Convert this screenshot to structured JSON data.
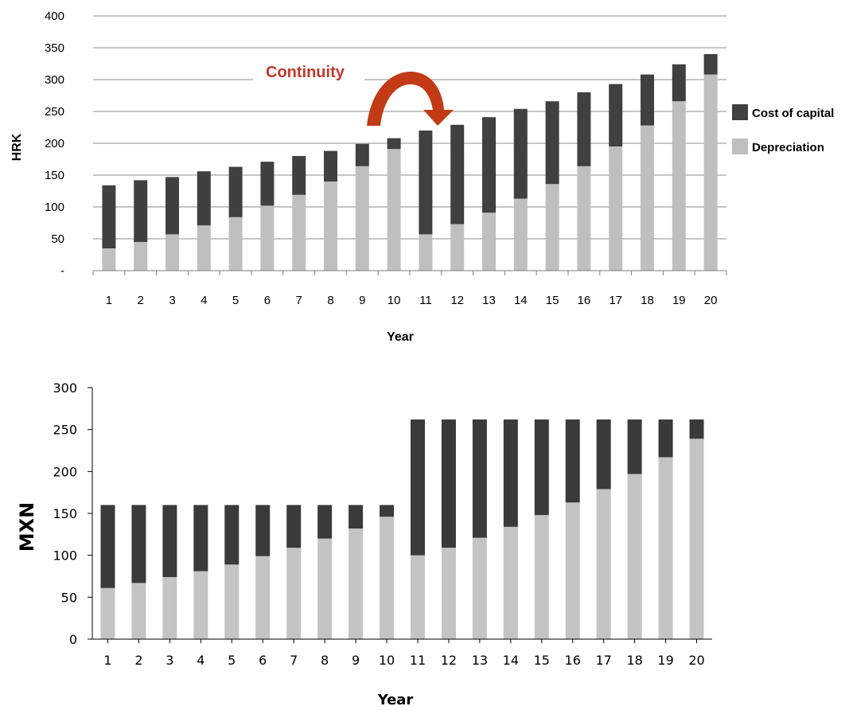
{
  "chart_data": [
    {
      "type": "bar",
      "stacked": true,
      "categories": [
        "1",
        "2",
        "3",
        "4",
        "5",
        "6",
        "7",
        "8",
        "9",
        "10",
        "11",
        "12",
        "13",
        "14",
        "15",
        "16",
        "17",
        "18",
        "19",
        "20"
      ],
      "series": [
        {
          "name": "Depreciation",
          "color": "#bfbfbf",
          "values": [
            35,
            45,
            57,
            71,
            84,
            102,
            119,
            140,
            164,
            191,
            57,
            73,
            91,
            113,
            136,
            164,
            195,
            228,
            266,
            308
          ]
        },
        {
          "name": "Cost of capital",
          "color": "#404040",
          "values": [
            99,
            97,
            90,
            85,
            79,
            69,
            61,
            48,
            35,
            17,
            163,
            156,
            150,
            141,
            130,
            116,
            98,
            80,
            58,
            32
          ]
        }
      ],
      "totals": [
        134,
        142,
        147,
        156,
        163,
        171,
        180,
        188,
        199,
        208,
        220,
        229,
        241,
        254,
        266,
        280,
        293,
        308,
        324,
        340
      ],
      "ylabel": "HRK",
      "xlabel": "Year",
      "ylim": [
        0,
        400
      ],
      "yticks": [
        "-",
        "50",
        "100",
        "150",
        "200",
        "250",
        "300",
        "350",
        "400"
      ],
      "grid": true,
      "legend_position": "right",
      "annotation": {
        "text": "Continuity",
        "color": "#c0392b"
      }
    },
    {
      "type": "bar",
      "stacked": true,
      "categories": [
        "1",
        "2",
        "3",
        "4",
        "5",
        "6",
        "7",
        "8",
        "9",
        "10",
        "11",
        "12",
        "13",
        "14",
        "15",
        "16",
        "17",
        "18",
        "19",
        "20"
      ],
      "series": [
        {
          "name": "Depreciation",
          "color": "#c4c4c4",
          "values": [
            61,
            67,
            74,
            81,
            89,
            99,
            109,
            120,
            132,
            146,
            100,
            109,
            121,
            134,
            148,
            163,
            179,
            197,
            217,
            239
          ]
        },
        {
          "name": "Cost of capital",
          "color": "#3a3a3a",
          "values": [
            99,
            93,
            86,
            79,
            71,
            61,
            51,
            40,
            28,
            14,
            162,
            153,
            141,
            128,
            114,
            99,
            83,
            65,
            45,
            23
          ]
        }
      ],
      "totals": [
        160,
        160,
        160,
        160,
        160,
        160,
        160,
        160,
        160,
        160,
        262,
        262,
        262,
        262,
        262,
        262,
        262,
        262,
        262,
        262
      ],
      "ylabel": "MXN",
      "xlabel": "Year",
      "ylim": [
        0,
        300
      ],
      "yticks": [
        "0",
        "50",
        "100",
        "150",
        "200",
        "250",
        "300"
      ],
      "grid": false
    }
  ]
}
